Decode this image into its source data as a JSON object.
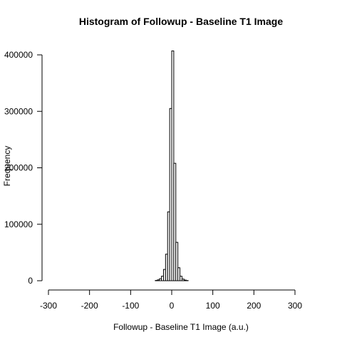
{
  "chart_data": {
    "type": "bar",
    "title": "Histogram of Followup - Baseline T1 Image",
    "xlabel": "Followup - Baseline T1 Image (a.u.)",
    "ylabel": "Frequency",
    "xlim": [
      -290,
      335
    ],
    "ylim": [
      0,
      410000
    ],
    "bin_width": 5,
    "bin_start": -290,
    "xticks": [
      -300,
      -200,
      -100,
      0,
      100,
      200,
      300
    ],
    "yticks": [
      0,
      100000,
      200000,
      300000,
      400000
    ],
    "bins": [
      {
        "x0": -290,
        "x1": -285,
        "count": 0
      },
      {
        "x0": -40,
        "x1": -35,
        "count": 500
      },
      {
        "x0": -35,
        "x1": -30,
        "count": 1500
      },
      {
        "x0": -30,
        "x1": -25,
        "count": 3500
      },
      {
        "x0": -25,
        "x1": -20,
        "count": 8000
      },
      {
        "x0": -20,
        "x1": -15,
        "count": 20000
      },
      {
        "x0": -15,
        "x1": -10,
        "count": 47000
      },
      {
        "x0": -10,
        "x1": -5,
        "count": 122000
      },
      {
        "x0": -5,
        "x1": 0,
        "count": 305000
      },
      {
        "x0": 0,
        "x1": 5,
        "count": 407000
      },
      {
        "x0": 5,
        "x1": 10,
        "count": 208000
      },
      {
        "x0": 10,
        "x1": 15,
        "count": 68000
      },
      {
        "x0": 15,
        "x1": 20,
        "count": 23000
      },
      {
        "x0": 20,
        "x1": 25,
        "count": 8000
      },
      {
        "x0": 25,
        "x1": 30,
        "count": 3000
      },
      {
        "x0": 30,
        "x1": 35,
        "count": 1200
      },
      {
        "x0": 35,
        "x1": 40,
        "count": 400
      },
      {
        "x0": 330,
        "x1": 335,
        "count": 0
      }
    ]
  }
}
